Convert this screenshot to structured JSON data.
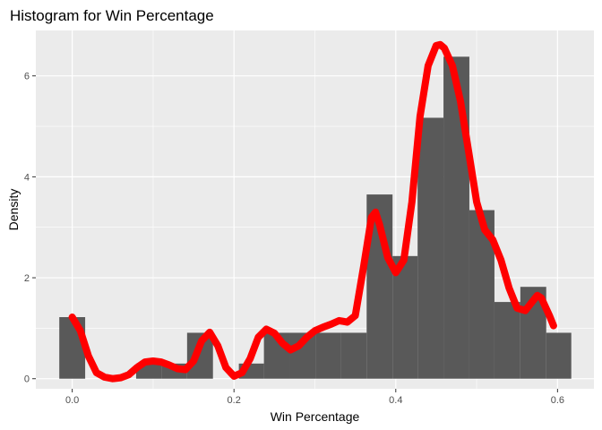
{
  "chart_data": {
    "type": "histogram",
    "title": "Histogram for Win Percentage",
    "xlabel": "Win Percentage",
    "ylabel": "Density",
    "xlim": [
      -0.045,
      0.645
    ],
    "ylim": [
      -0.2,
      6.9
    ],
    "xticks": [
      0.0,
      0.2,
      0.4,
      0.6
    ],
    "xtick_labels": [
      "0.0",
      "0.2",
      "0.4",
      "0.6"
    ],
    "yticks": [
      0,
      2,
      4,
      6
    ],
    "ytick_labels": [
      "0",
      "2",
      "4",
      "6"
    ],
    "grid": true,
    "panel_background": "#ebebeb",
    "grid_color": "#ffffff",
    "bar_color": "#595959",
    "bars": [
      {
        "x0": -0.016,
        "x1": 0.016,
        "density": 1.22
      },
      {
        "x0": 0.016,
        "x1": 0.047,
        "density": 0.0
      },
      {
        "x0": 0.047,
        "x1": 0.079,
        "density": 0.0
      },
      {
        "x0": 0.079,
        "x1": 0.111,
        "density": 0.3
      },
      {
        "x0": 0.111,
        "x1": 0.142,
        "density": 0.3
      },
      {
        "x0": 0.142,
        "x1": 0.174,
        "density": 0.91
      },
      {
        "x0": 0.174,
        "x1": 0.206,
        "density": 0.0
      },
      {
        "x0": 0.206,
        "x1": 0.237,
        "density": 0.3
      },
      {
        "x0": 0.237,
        "x1": 0.269,
        "density": 0.91
      },
      {
        "x0": 0.269,
        "x1": 0.301,
        "density": 0.91
      },
      {
        "x0": 0.301,
        "x1": 0.332,
        "density": 0.91
      },
      {
        "x0": 0.332,
        "x1": 0.364,
        "density": 0.91
      },
      {
        "x0": 0.364,
        "x1": 0.396,
        "density": 3.65
      },
      {
        "x0": 0.396,
        "x1": 0.427,
        "density": 2.43
      },
      {
        "x0": 0.427,
        "x1": 0.459,
        "density": 5.17
      },
      {
        "x0": 0.459,
        "x1": 0.491,
        "density": 6.38
      },
      {
        "x0": 0.491,
        "x1": 0.522,
        "density": 3.34
      },
      {
        "x0": 0.522,
        "x1": 0.554,
        "density": 1.52
      },
      {
        "x0": 0.554,
        "x1": 0.586,
        "density": 1.82
      },
      {
        "x0": 0.586,
        "x1": 0.617,
        "density": 0.91
      }
    ],
    "density_curve": {
      "color": "#ff0000",
      "x": [
        0.0,
        0.01,
        0.02,
        0.03,
        0.04,
        0.05,
        0.06,
        0.07,
        0.08,
        0.09,
        0.1,
        0.11,
        0.12,
        0.13,
        0.14,
        0.15,
        0.16,
        0.17,
        0.18,
        0.19,
        0.2,
        0.21,
        0.22,
        0.23,
        0.24,
        0.25,
        0.26,
        0.27,
        0.28,
        0.29,
        0.3,
        0.31,
        0.32,
        0.33,
        0.34,
        0.35,
        0.36,
        0.37,
        0.375,
        0.38,
        0.39,
        0.4,
        0.41,
        0.42,
        0.43,
        0.44,
        0.45,
        0.455,
        0.46,
        0.47,
        0.48,
        0.49,
        0.5,
        0.51,
        0.52,
        0.53,
        0.54,
        0.55,
        0.56,
        0.57,
        0.575,
        0.58,
        0.59,
        0.595
      ],
      "y": [
        1.22,
        0.95,
        0.45,
        0.12,
        0.03,
        0.0,
        0.02,
        0.08,
        0.22,
        0.33,
        0.35,
        0.33,
        0.27,
        0.2,
        0.18,
        0.35,
        0.75,
        0.92,
        0.65,
        0.22,
        0.05,
        0.12,
        0.4,
        0.82,
        0.98,
        0.9,
        0.7,
        0.57,
        0.65,
        0.82,
        0.95,
        1.02,
        1.08,
        1.15,
        1.12,
        1.25,
        2.2,
        3.2,
        3.3,
        3.05,
        2.4,
        2.1,
        2.35,
        3.5,
        5.2,
        6.2,
        6.6,
        6.62,
        6.55,
        6.2,
        5.5,
        4.5,
        3.5,
        2.95,
        2.75,
        2.35,
        1.8,
        1.4,
        1.35,
        1.55,
        1.65,
        1.6,
        1.25,
        1.05
      ]
    }
  }
}
